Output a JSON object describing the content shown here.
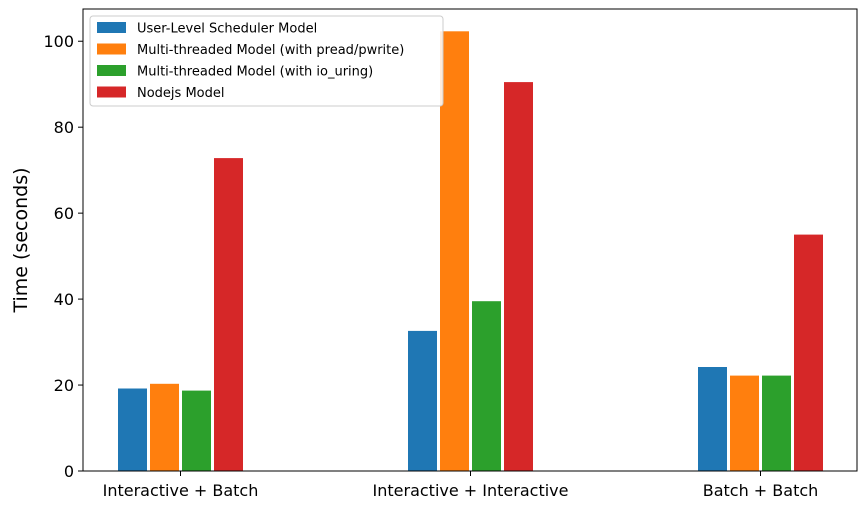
{
  "chart_data": {
    "type": "bar",
    "title": "",
    "xlabel": "",
    "ylabel": "Time (seconds)",
    "ylim": [
      0,
      107.5
    ],
    "yticks": [
      0,
      20,
      40,
      60,
      80,
      100
    ],
    "grid": false,
    "legend_position": "top-left",
    "categories": [
      "Interactive + Batch",
      "Interactive + Interactive",
      "Batch + Batch"
    ],
    "series": [
      {
        "name": "User-Level Scheduler Model",
        "color": "#1f77b4",
        "values": [
          19.2,
          32.6,
          24.2
        ]
      },
      {
        "name": "Multi-threaded Model (with pread/pwrite)",
        "color": "#ff7f0e",
        "values": [
          20.3,
          102.3,
          22.2
        ]
      },
      {
        "name": "Multi-threaded Model (with io_uring)",
        "color": "#2ca02c",
        "values": [
          18.7,
          39.5,
          22.2
        ]
      },
      {
        "name": "Nodejs Model",
        "color": "#d62728",
        "values": [
          72.8,
          90.5,
          55.0
        ]
      }
    ]
  }
}
